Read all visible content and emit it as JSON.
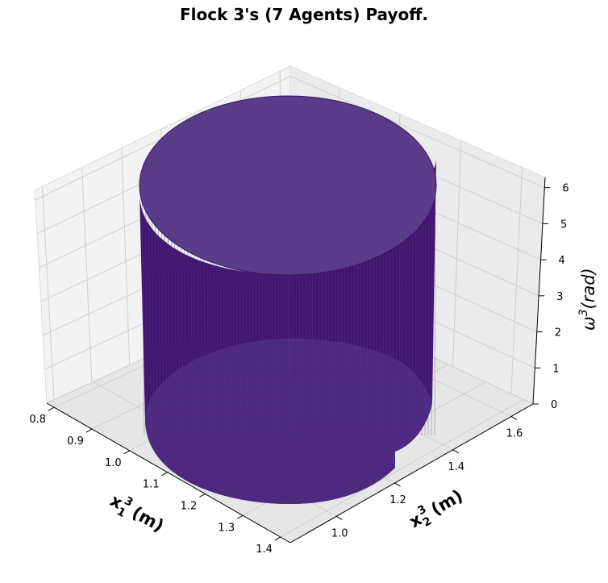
{
  "chart_data": {
    "type": "surface3d",
    "title": "Flock 3's (7 Agents) Payoff.",
    "xlabel": "x",
    "xlabel_sub": "1",
    "xlabel_sup": "3",
    "xlabel_unit": "(m)",
    "ylabel": "x",
    "ylabel_sub": "2",
    "ylabel_sup": "3",
    "ylabel_unit": "(m)",
    "zlabel": "ω",
    "zlabel_sup": "3",
    "zlabel_unit": "(rad)",
    "x_ticks": [
      "0.8",
      "0.9",
      "1.0",
      "1.1",
      "1.2",
      "1.3",
      "1.4"
    ],
    "y_ticks": [
      "1.0",
      "1.2",
      "1.4",
      "1.6"
    ],
    "z_ticks": [
      "0",
      "1",
      "2",
      "3",
      "4",
      "5",
      "6"
    ],
    "grid": true,
    "surface_color": "#40166f",
    "shape": "vertical cylindrical surface spanning ω³ from 0 to 2π"
  }
}
